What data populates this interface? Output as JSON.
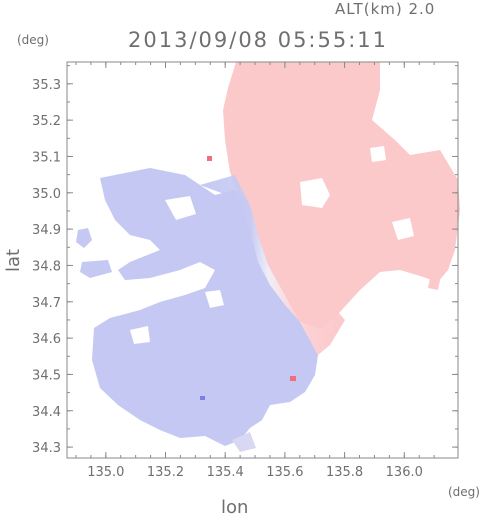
{
  "header": {
    "altitude_label": "ALT(km) 2.0",
    "timestamp": "2013/09/08 05:55:11"
  },
  "axes": {
    "x_label": "lon",
    "y_label": "lat",
    "x_unit": "(deg)",
    "y_unit": "(deg)",
    "x_range": [
      134.87,
      136.18
    ],
    "y_range": [
      34.27,
      35.36
    ],
    "x_ticks": [
      "135.0",
      "135.2",
      "135.4",
      "135.6",
      "135.8",
      "136.0"
    ],
    "y_ticks": [
      "34.3",
      "34.4",
      "34.5",
      "34.6",
      "34.7",
      "34.8",
      "34.9",
      "35.0",
      "35.1",
      "35.2",
      "35.3"
    ]
  },
  "map": {
    "type": "doppler-velocity-field",
    "colors": {
      "approaching": "#c4c8f2",
      "receding": "#fbc6c8",
      "near_zero": "#f4f1f7",
      "frame": "#8a8a8a"
    }
  }
}
